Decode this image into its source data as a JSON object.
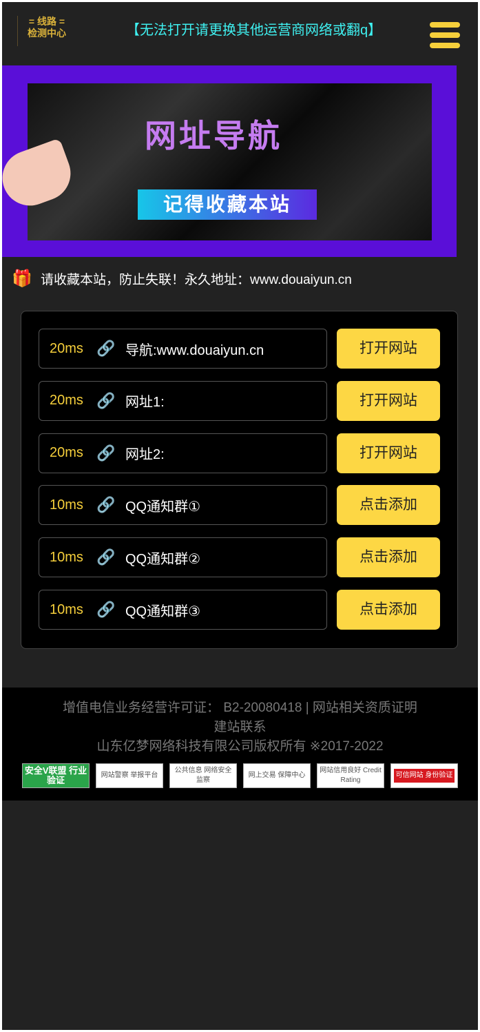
{
  "header": {
    "logo_line1": "= 线路 =",
    "logo_line2": "检测中心",
    "notice": "【无法打开请更换其他运营商网络或翻q】",
    "menu_icon": "hamburger-icon"
  },
  "banner": {
    "title": "网址导航",
    "subtitle": "记得收藏本站",
    "colors": {
      "frame": "#5a0fd8"
    }
  },
  "tip": {
    "icon": "gift-icon",
    "text": "请收藏本站，防止失联！永久地址：www.douaiyun.cn"
  },
  "links": [
    {
      "latency": "20ms",
      "name": "导航:www.douaiyun.cn",
      "button": "打开网站"
    },
    {
      "latency": "20ms",
      "name": "网址1:",
      "button": "打开网站"
    },
    {
      "latency": "20ms",
      "name": "网址2:",
      "button": "打开网站"
    },
    {
      "latency": "10ms",
      "name": "QQ通知群①",
      "button": "点击添加"
    },
    {
      "latency": "10ms",
      "name": "QQ通知群②",
      "button": "点击添加"
    },
    {
      "latency": "10ms",
      "name": "QQ通知群③",
      "button": "点击添加"
    }
  ],
  "footer": {
    "license": "增值电信业务经营许可证： B2-20080418 | 网站相关资质证明",
    "contact": "建站联系",
    "copyright": "山东亿梦网络科技有限公司版权所有 ※2017-2022",
    "badges": [
      "安全V联盟 行业验证",
      "网站警察 举报平台",
      "公共信息 网络安全监察",
      "网上交易 保障中心",
      "网站信用良好 Credit Rating",
      "可信网站 身份验证"
    ]
  },
  "colors": {
    "accent": "#fdd744",
    "notice": "#3ff0f0",
    "latency": "#f6cf3b"
  }
}
